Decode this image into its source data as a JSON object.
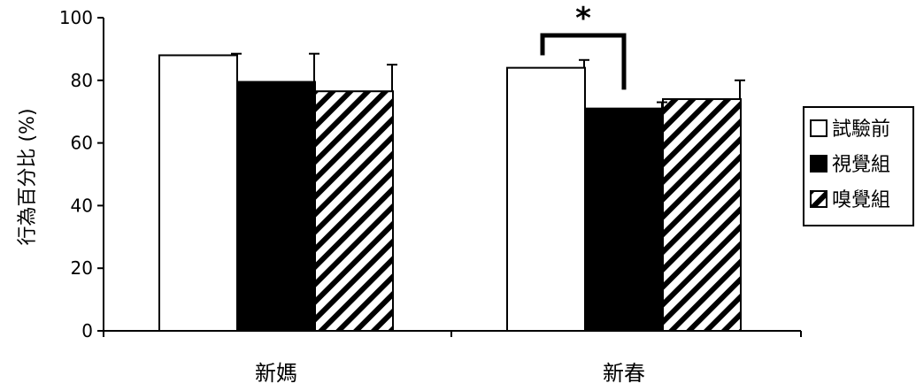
{
  "chart_data": {
    "type": "bar",
    "title": "",
    "xlabel": "",
    "ylabel": "行為百分比 (%)",
    "ylim": [
      0,
      100
    ],
    "yticks": [
      0,
      20,
      40,
      60,
      80,
      100
    ],
    "categories": [
      "新媽",
      "新春"
    ],
    "series": [
      {
        "name": "試驗前",
        "values": [
          88,
          84
        ],
        "errors": [
          0.5,
          2.5
        ],
        "fill": "white"
      },
      {
        "name": "視覺組",
        "values": [
          79.5,
          71
        ],
        "errors": [
          9,
          2
        ],
        "fill": "black"
      },
      {
        "name": "嗅覺組",
        "values": [
          76.5,
          74
        ],
        "errors": [
          8.5,
          6
        ],
        "fill": "hatch"
      }
    ],
    "legend_position": "right",
    "significance": [
      {
        "category": "新春",
        "between": [
          "試驗前",
          "視覺組"
        ],
        "label": "*"
      }
    ]
  },
  "colors": {
    "axis": "#000000",
    "bar_outline": "#000000",
    "white_fill": "#ffffff",
    "black_fill": "#000000"
  }
}
